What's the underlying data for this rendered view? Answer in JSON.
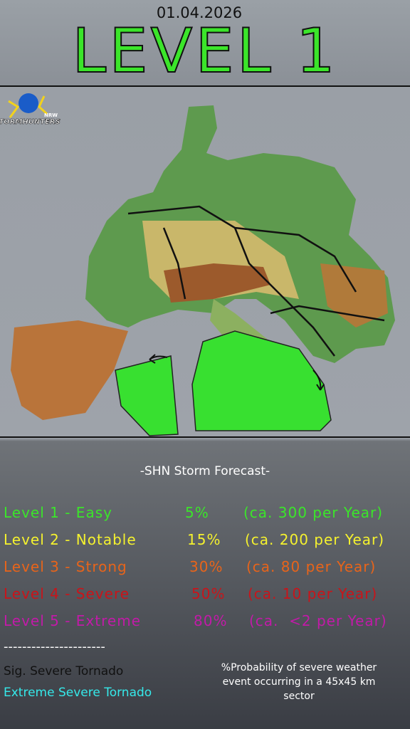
{
  "header": {
    "date": "01.04.2026",
    "level": "LEVEL 1"
  },
  "logo": {
    "name": "STORMHUNTERS",
    "region": "NRW"
  },
  "legend": {
    "heading": "-SHN Storm Forecast-",
    "levels": [
      {
        "name": "Level 1 - Easy",
        "probability": "5%",
        "frequency": "(ca. 300 per Year)",
        "color": "#3be52a"
      },
      {
        "name": "Level 2 - Notable",
        "probability": "15%",
        "frequency": "(ca. 200 per Year)",
        "color": "#f5f22e"
      },
      {
        "name": "Level 3 - Strong",
        "probability": "30%",
        "frequency": "(ca. 80 per Year)",
        "color": "#e8641a"
      },
      {
        "name": "Level 4 - Severe",
        "probability": "50%",
        "frequency": "(ca. 10 per Year)",
        "color": "#c9141a"
      },
      {
        "name": "Level 5 - Extreme",
        "probability": "80%",
        "frequency": "(ca.  <2 per Year)",
        "color": "#c21aa8"
      }
    ],
    "divider": "----------------------",
    "tornado": [
      {
        "name": "Sig. Severe Tornado",
        "color": "#111111"
      },
      {
        "name": "Extreme Severe Tornado",
        "color": "#35e9ea"
      }
    ],
    "note": "%Probability of severe weather event occurring in a 45x45 km sector"
  }
}
